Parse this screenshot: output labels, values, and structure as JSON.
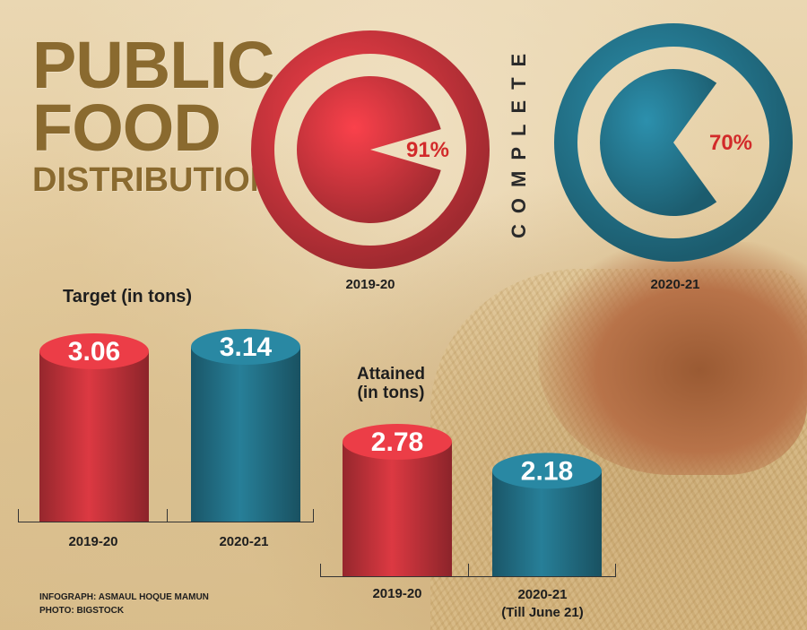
{
  "title": {
    "line1": "PUBLIC",
    "line2": "FOOD",
    "line3": "DISTRIBUTION"
  },
  "complete_label": "COMPLETE",
  "colors": {
    "red": "#c8343c",
    "teal": "#23738a",
    "label_red": "#d22a2a",
    "title_gold": "#8a6a2f"
  },
  "chart_data": [
    {
      "type": "pie",
      "label": "2019-20",
      "value": 91,
      "value_text": "91%",
      "color": "#c8343c"
    },
    {
      "type": "pie",
      "label": "2020-21",
      "value": 70,
      "value_text": "70%",
      "color": "#23738a"
    },
    {
      "type": "bar",
      "title": "Target (in tons)",
      "categories": [
        "2019-20",
        "2020-21"
      ],
      "values": [
        3.06,
        3.14
      ],
      "value_labels": [
        "3.06",
        "3.14"
      ]
    },
    {
      "type": "bar",
      "title_line1": "Attained",
      "title_line2": "(in tons)",
      "categories": [
        "2019-20",
        "2020-21"
      ],
      "category_notes": [
        "",
        "(Till June 21)"
      ],
      "values": [
        2.78,
        2.18
      ],
      "value_labels": [
        "2.78",
        "2.18"
      ]
    }
  ],
  "credits": {
    "line1": "INFOGRAPH: ASMAUL HOQUE MAMUN",
    "line2": "PHOTO: BIGSTOCK"
  }
}
